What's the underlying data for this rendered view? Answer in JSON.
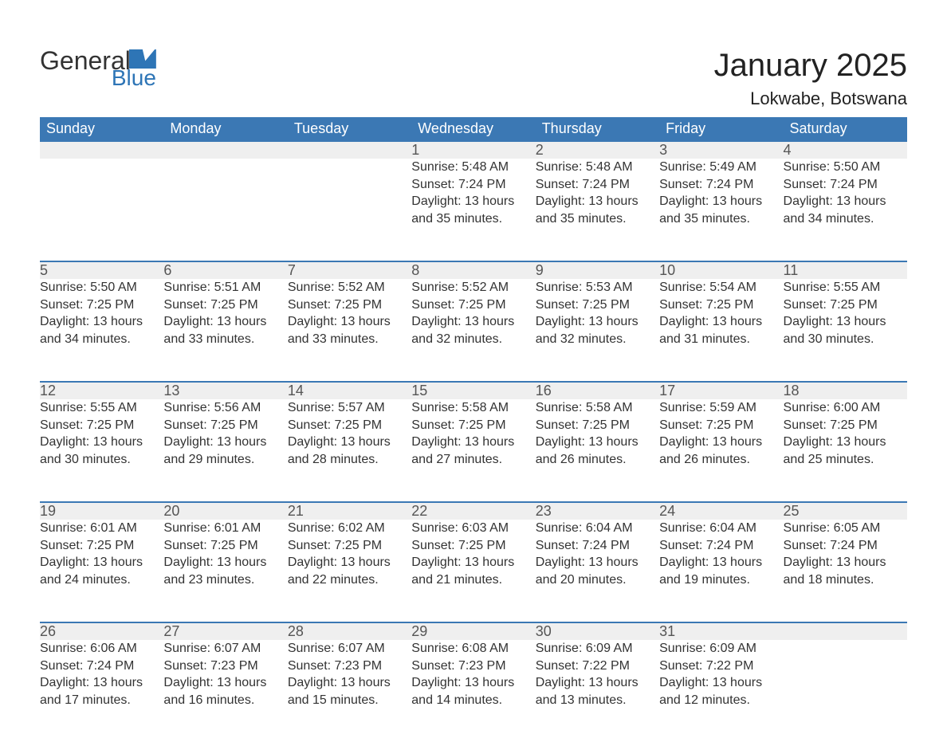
{
  "logo": {
    "word1": "General",
    "word2": "Blue"
  },
  "title": "January 2025",
  "location": "Lokwabe, Botswana",
  "colors": {
    "header_bg": "#3b78b4",
    "header_text": "#ffffff",
    "daynum_bg": "#efefef",
    "daynum_border": "#3b78b4",
    "body_text": "#333333",
    "logo_accent": "#2e75b6"
  },
  "calendar": {
    "columns": [
      "Sunday",
      "Monday",
      "Tuesday",
      "Wednesday",
      "Thursday",
      "Friday",
      "Saturday"
    ],
    "rows": [
      [
        null,
        null,
        null,
        {
          "n": "1",
          "sunrise": "5:48 AM",
          "sunset": "7:24 PM",
          "dl1": "Daylight: 13 hours",
          "dl2": "and 35 minutes."
        },
        {
          "n": "2",
          "sunrise": "5:48 AM",
          "sunset": "7:24 PM",
          "dl1": "Daylight: 13 hours",
          "dl2": "and 35 minutes."
        },
        {
          "n": "3",
          "sunrise": "5:49 AM",
          "sunset": "7:24 PM",
          "dl1": "Daylight: 13 hours",
          "dl2": "and 35 minutes."
        },
        {
          "n": "4",
          "sunrise": "5:50 AM",
          "sunset": "7:24 PM",
          "dl1": "Daylight: 13 hours",
          "dl2": "and 34 minutes."
        }
      ],
      [
        {
          "n": "5",
          "sunrise": "5:50 AM",
          "sunset": "7:25 PM",
          "dl1": "Daylight: 13 hours",
          "dl2": "and 34 minutes."
        },
        {
          "n": "6",
          "sunrise": "5:51 AM",
          "sunset": "7:25 PM",
          "dl1": "Daylight: 13 hours",
          "dl2": "and 33 minutes."
        },
        {
          "n": "7",
          "sunrise": "5:52 AM",
          "sunset": "7:25 PM",
          "dl1": "Daylight: 13 hours",
          "dl2": "and 33 minutes."
        },
        {
          "n": "8",
          "sunrise": "5:52 AM",
          "sunset": "7:25 PM",
          "dl1": "Daylight: 13 hours",
          "dl2": "and 32 minutes."
        },
        {
          "n": "9",
          "sunrise": "5:53 AM",
          "sunset": "7:25 PM",
          "dl1": "Daylight: 13 hours",
          "dl2": "and 32 minutes."
        },
        {
          "n": "10",
          "sunrise": "5:54 AM",
          "sunset": "7:25 PM",
          "dl1": "Daylight: 13 hours",
          "dl2": "and 31 minutes."
        },
        {
          "n": "11",
          "sunrise": "5:55 AM",
          "sunset": "7:25 PM",
          "dl1": "Daylight: 13 hours",
          "dl2": "and 30 minutes."
        }
      ],
      [
        {
          "n": "12",
          "sunrise": "5:55 AM",
          "sunset": "7:25 PM",
          "dl1": "Daylight: 13 hours",
          "dl2": "and 30 minutes."
        },
        {
          "n": "13",
          "sunrise": "5:56 AM",
          "sunset": "7:25 PM",
          "dl1": "Daylight: 13 hours",
          "dl2": "and 29 minutes."
        },
        {
          "n": "14",
          "sunrise": "5:57 AM",
          "sunset": "7:25 PM",
          "dl1": "Daylight: 13 hours",
          "dl2": "and 28 minutes."
        },
        {
          "n": "15",
          "sunrise": "5:58 AM",
          "sunset": "7:25 PM",
          "dl1": "Daylight: 13 hours",
          "dl2": "and 27 minutes."
        },
        {
          "n": "16",
          "sunrise": "5:58 AM",
          "sunset": "7:25 PM",
          "dl1": "Daylight: 13 hours",
          "dl2": "and 26 minutes."
        },
        {
          "n": "17",
          "sunrise": "5:59 AM",
          "sunset": "7:25 PM",
          "dl1": "Daylight: 13 hours",
          "dl2": "and 26 minutes."
        },
        {
          "n": "18",
          "sunrise": "6:00 AM",
          "sunset": "7:25 PM",
          "dl1": "Daylight: 13 hours",
          "dl2": "and 25 minutes."
        }
      ],
      [
        {
          "n": "19",
          "sunrise": "6:01 AM",
          "sunset": "7:25 PM",
          "dl1": "Daylight: 13 hours",
          "dl2": "and 24 minutes."
        },
        {
          "n": "20",
          "sunrise": "6:01 AM",
          "sunset": "7:25 PM",
          "dl1": "Daylight: 13 hours",
          "dl2": "and 23 minutes."
        },
        {
          "n": "21",
          "sunrise": "6:02 AM",
          "sunset": "7:25 PM",
          "dl1": "Daylight: 13 hours",
          "dl2": "and 22 minutes."
        },
        {
          "n": "22",
          "sunrise": "6:03 AM",
          "sunset": "7:25 PM",
          "dl1": "Daylight: 13 hours",
          "dl2": "and 21 minutes."
        },
        {
          "n": "23",
          "sunrise": "6:04 AM",
          "sunset": "7:24 PM",
          "dl1": "Daylight: 13 hours",
          "dl2": "and 20 minutes."
        },
        {
          "n": "24",
          "sunrise": "6:04 AM",
          "sunset": "7:24 PM",
          "dl1": "Daylight: 13 hours",
          "dl2": "and 19 minutes."
        },
        {
          "n": "25",
          "sunrise": "6:05 AM",
          "sunset": "7:24 PM",
          "dl1": "Daylight: 13 hours",
          "dl2": "and 18 minutes."
        }
      ],
      [
        {
          "n": "26",
          "sunrise": "6:06 AM",
          "sunset": "7:24 PM",
          "dl1": "Daylight: 13 hours",
          "dl2": "and 17 minutes."
        },
        {
          "n": "27",
          "sunrise": "6:07 AM",
          "sunset": "7:23 PM",
          "dl1": "Daylight: 13 hours",
          "dl2": "and 16 minutes."
        },
        {
          "n": "28",
          "sunrise": "6:07 AM",
          "sunset": "7:23 PM",
          "dl1": "Daylight: 13 hours",
          "dl2": "and 15 minutes."
        },
        {
          "n": "29",
          "sunrise": "6:08 AM",
          "sunset": "7:23 PM",
          "dl1": "Daylight: 13 hours",
          "dl2": "and 14 minutes."
        },
        {
          "n": "30",
          "sunrise": "6:09 AM",
          "sunset": "7:22 PM",
          "dl1": "Daylight: 13 hours",
          "dl2": "and 13 minutes."
        },
        {
          "n": "31",
          "sunrise": "6:09 AM",
          "sunset": "7:22 PM",
          "dl1": "Daylight: 13 hours",
          "dl2": "and 12 minutes."
        },
        null
      ]
    ]
  },
  "labels": {
    "sunrise": "Sunrise: ",
    "sunset": "Sunset: "
  }
}
